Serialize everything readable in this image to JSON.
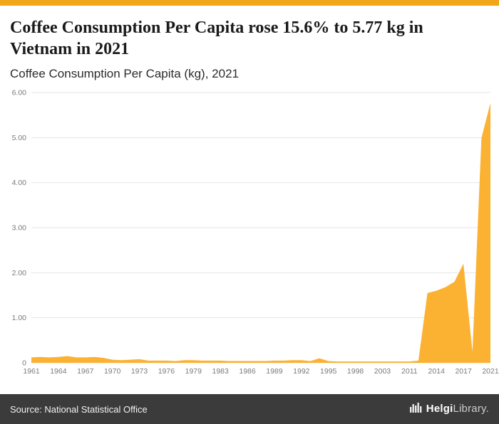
{
  "page": {
    "title": "Coffee Consumption Per Capita rose 15.6% to 5.77 kg in Vietnam in 2021",
    "subtitle": "Coffee Consumption Per Capita (kg), 2021"
  },
  "footer": {
    "source": "Source: National Statistical Office",
    "brand_primary": "Helgi",
    "brand_secondary": "Library."
  },
  "colors": {
    "accent": "#F2A71B",
    "area": "#FBB233",
    "footer_bg": "#3B3B3B",
    "grid": "#E4E4E4",
    "tick_text": "#7A7A7A"
  },
  "chart_data": {
    "type": "area",
    "title": "Coffee Consumption Per Capita (kg), 2021",
    "xlabel": "",
    "ylabel": "",
    "ylim": [
      0,
      6
    ],
    "grid": true,
    "y_ticks": [
      {
        "v": 0,
        "label": "0"
      },
      {
        "v": 1,
        "label": "1.00"
      },
      {
        "v": 2,
        "label": "2.00"
      },
      {
        "v": 3,
        "label": "3.00"
      },
      {
        "v": 4,
        "label": "4.00"
      },
      {
        "v": 5,
        "label": "5.00"
      },
      {
        "v": 6,
        "label": "6.00"
      }
    ],
    "x_tick_years": [
      1961,
      1964,
      1967,
      1970,
      1973,
      1976,
      1979,
      1983,
      1986,
      1989,
      1992,
      1995,
      1998,
      2003,
      2011,
      2014,
      2017,
      2021
    ],
    "points": [
      [
        1961,
        0.12
      ],
      [
        1962,
        0.13
      ],
      [
        1963,
        0.12
      ],
      [
        1964,
        0.13
      ],
      [
        1965,
        0.15
      ],
      [
        1966,
        0.12
      ],
      [
        1967,
        0.12
      ],
      [
        1968,
        0.13
      ],
      [
        1969,
        0.11
      ],
      [
        1970,
        0.07
      ],
      [
        1971,
        0.06
      ],
      [
        1972,
        0.07
      ],
      [
        1973,
        0.08
      ],
      [
        1974,
        0.05
      ],
      [
        1975,
        0.05
      ],
      [
        1976,
        0.05
      ],
      [
        1977,
        0.04
      ],
      [
        1978,
        0.06
      ],
      [
        1979,
        0.06
      ],
      [
        1981,
        0.05
      ],
      [
        1982,
        0.05
      ],
      [
        1983,
        0.05
      ],
      [
        1984,
        0.04
      ],
      [
        1985,
        0.04
      ],
      [
        1986,
        0.04
      ],
      [
        1987,
        0.04
      ],
      [
        1988,
        0.04
      ],
      [
        1989,
        0.05
      ],
      [
        1990,
        0.05
      ],
      [
        1991,
        0.06
      ],
      [
        1992,
        0.06
      ],
      [
        1993,
        0.04
      ],
      [
        1994,
        0.1
      ],
      [
        1995,
        0.04
      ],
      [
        1996,
        0.03
      ],
      [
        1997,
        0.03
      ],
      [
        1998,
        0.03
      ],
      [
        2000,
        0.03
      ],
      [
        2001,
        0.03
      ],
      [
        2003,
        0.03
      ],
      [
        2007,
        0.03
      ],
      [
        2009,
        0.03
      ],
      [
        2011,
        0.03
      ],
      [
        2012,
        0.05
      ],
      [
        2013,
        1.55
      ],
      [
        2014,
        1.6
      ],
      [
        2015,
        1.68
      ],
      [
        2016,
        1.8
      ],
      [
        2017,
        2.2
      ],
      [
        2019,
        0.25
      ],
      [
        2020,
        4.99
      ],
      [
        2021,
        5.77
      ]
    ]
  }
}
